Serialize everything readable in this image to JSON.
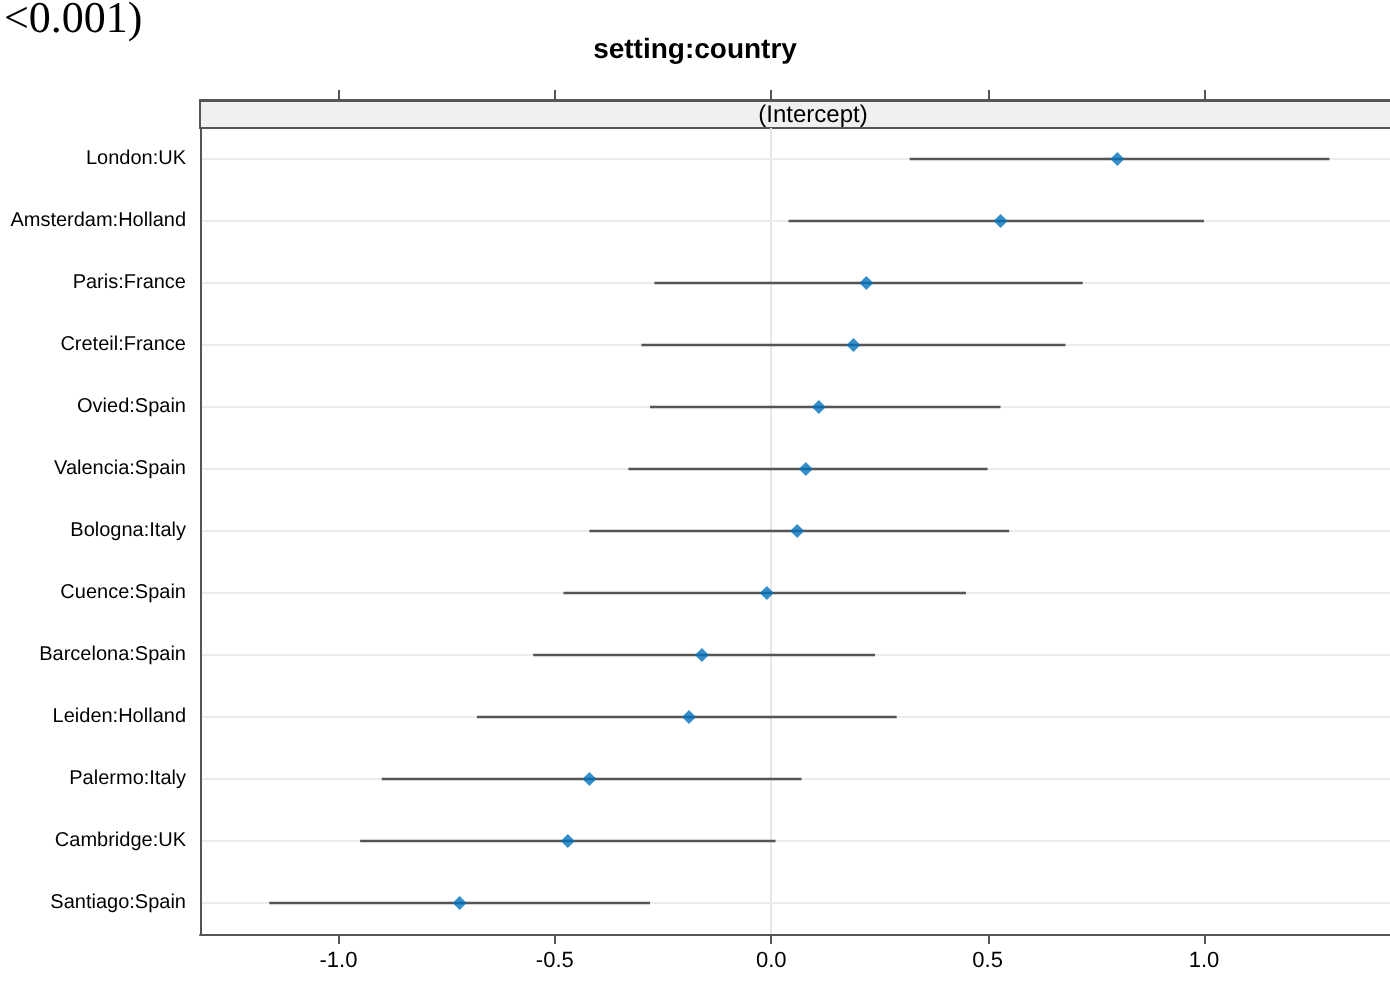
{
  "chart_data": {
    "type": "scatter",
    "title": "setting:country",
    "subtitle": "(Intercept)",
    "annotations": [
      "<0.001)"
    ],
    "orientation": "horizontal",
    "categories": [
      "London:UK",
      "Amsterdam:Holland",
      "Paris:France",
      "Creteil:France",
      "Ovied:Spain",
      "Valencia:Spain",
      "Bologna:Italy",
      "Cuence:Spain",
      "Barcelona:Spain",
      "Leiden:Holland",
      "Palermo:Italy",
      "Cambridge:UK",
      "Santiago:Spain"
    ],
    "series": [
      {
        "color": "#0072bd",
        "values": [
          0.8,
          0.53,
          0.22,
          0.19,
          0.11,
          0.08,
          0.06,
          -0.01,
          -0.16,
          -0.19,
          -0.42,
          -0.47,
          -0.72
        ],
        "errors": [
          [
            0.32,
            1.29
          ],
          [
            0.04,
            1.0
          ],
          [
            -0.27,
            0.72
          ],
          [
            -0.3,
            0.68
          ],
          [
            -0.28,
            0.53
          ],
          [
            -0.33,
            0.5
          ],
          [
            -0.42,
            0.55
          ],
          [
            -0.48,
            0.45
          ],
          [
            -0.55,
            0.24
          ],
          [
            -0.68,
            0.29
          ],
          [
            -0.9,
            0.07
          ],
          [
            -0.95,
            0.01
          ],
          [
            -1.16,
            -0.28
          ]
        ]
      }
    ],
    "xlim": [
      -1.32,
      1.43
    ],
    "xticks": [
      {
        "value": -1,
        "label": "-1.0"
      },
      {
        "value": -0.5,
        "label": "-0.5"
      },
      {
        "value": 0,
        "label": "0.0"
      },
      {
        "value": 0.5,
        "label": "0.5"
      },
      {
        "value": 1,
        "label": "1.0"
      }
    ],
    "ref_lines": [
      {
        "axis": "x",
        "value": 0,
        "color": "#e6e6e6"
      }
    ],
    "grid": "y",
    "marker": "diamond"
  }
}
